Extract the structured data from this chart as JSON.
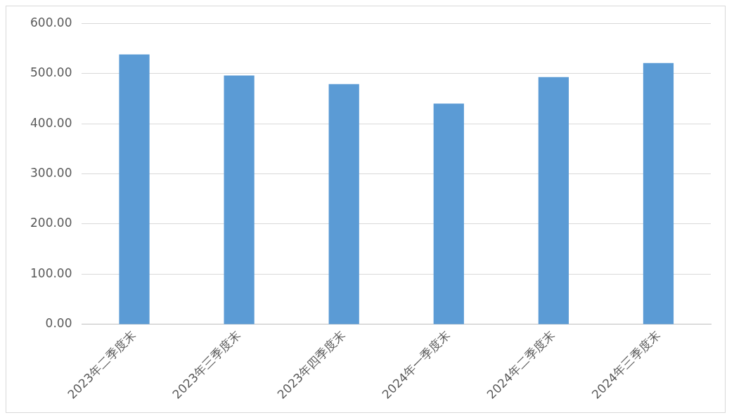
{
  "chart_data": {
    "type": "bar",
    "categories": [
      "2023年二季度末",
      "2023年三季度末",
      "2023年四季度末",
      "2024年一季度末",
      "2024年二季度末",
      "2024年三季度末"
    ],
    "values": [
      538,
      496,
      479,
      440,
      493,
      521
    ],
    "color": "#5b9bd5",
    "ylim": [
      0,
      600
    ],
    "yticks": [
      {
        "value": 0,
        "label": "0.00"
      },
      {
        "value": 100,
        "label": "100.00"
      },
      {
        "value": 200,
        "label": "200.00"
      },
      {
        "value": 300,
        "label": "300.00"
      },
      {
        "value": 400,
        "label": "400.00"
      },
      {
        "value": 500,
        "label": "500.00"
      },
      {
        "value": 600,
        "label": "600.00"
      }
    ],
    "grid": "y",
    "legend": false
  }
}
